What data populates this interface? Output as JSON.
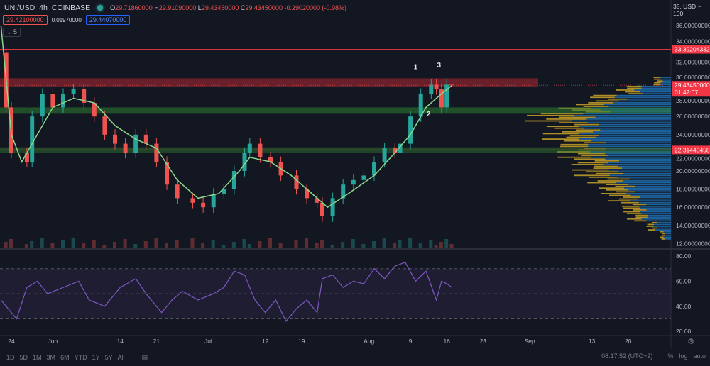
{
  "header": {
    "symbol": "UNI/USD",
    "interval": "4h",
    "exchange": "COINBASE",
    "open_label": "O",
    "open": "29.71860000",
    "high_label": "H",
    "high": "29.91090000",
    "low_label": "L",
    "low": "29.43450000",
    "close_label": "C",
    "close": "29.43450000",
    "change": "-0.29020000 (-0.98%)",
    "bid": "29.42100000",
    "spread": "0.01970000",
    "ask": "29.44070000",
    "collapse": "⌄ 5"
  },
  "price_axis": {
    "currency": "38. USD ~ 100",
    "ticks": [
      12,
      14,
      16,
      18,
      20,
      22,
      24,
      26,
      28,
      30,
      32,
      34,
      36,
      38
    ],
    "tick_labels": [
      "12.00000000",
      "14.00000000",
      "16.00000000",
      "18.00000000",
      "20.00000000",
      "22.00000000",
      "24.00000000",
      "26.00000000",
      "28.00000000",
      "30.00000000",
      "32.00000000",
      "34.00000000",
      "36.00000000"
    ],
    "resistance_label": "33.39204332",
    "last_price_label": "29.43450000",
    "countdown": "01:42:07",
    "support_label": "22.31440458"
  },
  "rsi_axis": {
    "tick_labels": [
      "80.00",
      "60.00",
      "40.00",
      "20.00"
    ],
    "ticks": [
      80,
      60,
      40,
      20
    ],
    "bands": [
      70,
      50,
      30
    ]
  },
  "time_axis": {
    "labels": [
      "24",
      "Jun",
      "14",
      "21",
      "Jul",
      "12",
      "19",
      "Aug",
      "9",
      "16",
      "23",
      "Sep",
      "13",
      "20"
    ],
    "days": [
      0,
      8,
      21,
      28,
      38,
      49,
      56,
      69,
      77,
      84,
      91,
      100,
      112,
      119
    ]
  },
  "toolbar": {
    "ranges": [
      "1D",
      "5D",
      "1M",
      "3M",
      "6M",
      "YTD",
      "1Y",
      "5Y",
      "All"
    ],
    "time": "08:17:52 (UTC+2)",
    "percent": "%",
    "log": "log",
    "auto": "auto"
  },
  "annotations": {
    "labels": [
      "1",
      "2",
      "3"
    ]
  },
  "colors": {
    "bg": "#131722",
    "up": "#26a69a",
    "down": "#ef5350",
    "ma": "#8bd88b",
    "rsi": "#7e57c2",
    "resistance": "#f23645",
    "support_zone": "#2e7d32",
    "vp_up": "#1e6fb0",
    "vp_down": "#c9a227"
  },
  "chart_data": {
    "type": "candlestick",
    "ylim": [
      11.5,
      38.5
    ],
    "series_close": {
      "days": [
        -2,
        -1,
        0,
        3,
        4,
        6,
        8,
        10,
        12,
        14,
        16,
        18,
        20,
        22,
        24,
        26,
        28,
        30,
        32,
        35,
        37,
        39,
        41,
        43,
        45,
        46,
        48,
        50,
        52,
        55,
        57,
        59,
        60,
        62,
        64,
        66,
        68,
        70,
        72,
        74,
        75,
        77,
        79,
        81,
        82,
        83,
        84,
        85
      ],
      "values": [
        33,
        27,
        22,
        21,
        26,
        28.5,
        27,
        28.5,
        29,
        27.5,
        26,
        24,
        23,
        22,
        24,
        23,
        21,
        18.5,
        17,
        16.5,
        16,
        17.5,
        18,
        20,
        22,
        23,
        21.5,
        21,
        19.5,
        18,
        17,
        16.5,
        15,
        17,
        18.5,
        19,
        19.5,
        21,
        22.5,
        22,
        23,
        26,
        28.5,
        29.5,
        29,
        27,
        29.5,
        29.43
      ]
    },
    "moving_average": {
      "days": [
        -2,
        0,
        2,
        5,
        8,
        12,
        16,
        20,
        24,
        28,
        32,
        36,
        40,
        44,
        46,
        50,
        54,
        58,
        61,
        65,
        70,
        74,
        77,
        80,
        83,
        85
      ],
      "values": [
        36,
        24,
        21,
        24,
        27,
        28,
        27.5,
        25,
        23.5,
        22.5,
        19,
        17,
        17.5,
        20,
        21.5,
        21,
        19.5,
        17.5,
        16,
        17.5,
        19.5,
        22,
        24,
        27,
        28.5,
        29.4
      ]
    },
    "rsi": {
      "days": [
        -2,
        0,
        1,
        3,
        5,
        7,
        10,
        13,
        15,
        18,
        21,
        24,
        26,
        29,
        31,
        33,
        36,
        39,
        41,
        43,
        45,
        47,
        49,
        51,
        53,
        55,
        57,
        59,
        60,
        62,
        64,
        66,
        68,
        70,
        72,
        74,
        76,
        78,
        80,
        82,
        83,
        84,
        85
      ],
      "values": [
        45,
        35,
        30,
        55,
        60,
        50,
        55,
        60,
        45,
        40,
        55,
        62,
        50,
        35,
        45,
        52,
        45,
        50,
        55,
        68,
        65,
        45,
        35,
        45,
        28,
        38,
        45,
        35,
        62,
        65,
        55,
        60,
        58,
        70,
        62,
        72,
        75,
        60,
        68,
        45,
        60,
        58,
        55
      ]
    },
    "levels": {
      "resistance_line": 33.39204332,
      "resistance_zone": [
        29.3,
        30.2
      ],
      "support_zone_high": [
        26.3,
        27.0
      ],
      "support_line": 22.31440458,
      "support_zone_low": [
        22.0,
        22.6
      ]
    },
    "volume_profile": {
      "prices": [
        13,
        14,
        15,
        16,
        17,
        18,
        19,
        20,
        21,
        22,
        23,
        24,
        25,
        26,
        27,
        28,
        29,
        30
      ],
      "up": [
        10,
        25,
        40,
        45,
        55,
        65,
        75,
        85,
        95,
        110,
        120,
        125,
        130,
        135,
        110,
        80,
        50,
        15
      ],
      "down": [
        5,
        10,
        20,
        25,
        30,
        35,
        40,
        50,
        45,
        45,
        40,
        50,
        45,
        65,
        45,
        35,
        25,
        10
      ]
    }
  }
}
